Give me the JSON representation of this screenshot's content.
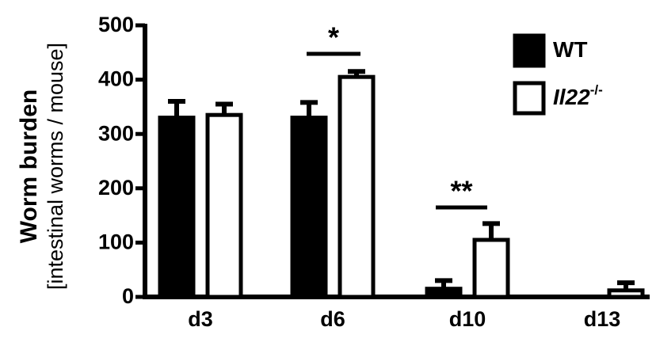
{
  "chart_data": {
    "type": "bar",
    "ylabel": [
      "Worm burden",
      "[intestinal worms / mouse]"
    ],
    "categories": [
      "d3",
      "d6",
      "d10",
      "d13"
    ],
    "series": [
      {
        "name": "WT",
        "color": "#000000",
        "values": [
          330,
          330,
          15,
          0
        ],
        "errors": [
          30,
          28,
          15,
          0
        ]
      },
      {
        "name": "Il22",
        "name_superscript": "-/-",
        "color": "#ffffff",
        "values": [
          335,
          405,
          105,
          12
        ],
        "errors": [
          20,
          10,
          30,
          14
        ]
      }
    ],
    "annotations": [
      "*",
      "**"
    ],
    "ylim": [
      0,
      500
    ],
    "yticks": [
      0,
      100,
      200,
      300,
      400,
      500
    ]
  }
}
